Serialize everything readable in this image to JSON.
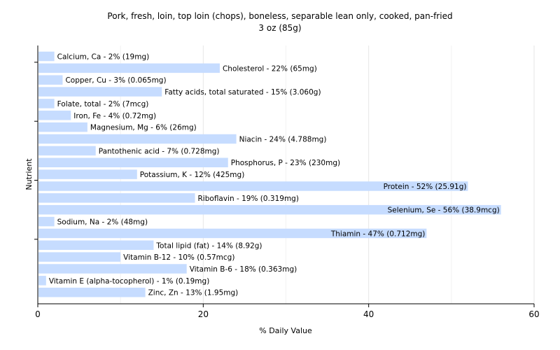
{
  "chart_data": {
    "type": "bar",
    "orientation": "horizontal",
    "title": "Pork, fresh, loin, top loin (chops), boneless, separable lean only, cooked, pan-fried",
    "subtitle": "3 oz (85g)",
    "xlabel": "% Daily Value",
    "ylabel": "Nutrient",
    "xlim": [
      0,
      60
    ],
    "xticks": [
      0,
      20,
      40,
      60
    ],
    "grid": true,
    "bar_color": "#c6dcff",
    "categories": [
      "Calcium, Ca - 2% (19mg)",
      "Cholesterol - 22% (65mg)",
      "Copper, Cu - 3% (0.065mg)",
      "Fatty acids, total saturated - 15% (3.060g)",
      "Folate, total - 2% (7mcg)",
      "Iron, Fe - 4% (0.72mg)",
      "Magnesium, Mg - 6% (26mg)",
      "Niacin - 24% (4.788mg)",
      "Pantothenic acid - 7% (0.728mg)",
      "Phosphorus, P - 23% (230mg)",
      "Potassium, K - 12% (425mg)",
      "Protein - 52% (25.91g)",
      "Riboflavin - 19% (0.319mg)",
      "Selenium, Se - 56% (38.9mcg)",
      "Sodium, Na - 2% (48mg)",
      "Thiamin - 47% (0.712mg)",
      "Total lipid (fat) - 14% (8.92g)",
      "Vitamin B-12 - 10% (0.57mcg)",
      "Vitamin B-6 - 18% (0.363mg)",
      "Vitamin E (alpha-tocopherol) - 1% (0.19mg)",
      "Zinc, Zn - 13% (1.95mg)"
    ],
    "values": [
      2,
      22,
      3,
      15,
      2,
      4,
      6,
      24,
      7,
      23,
      12,
      52,
      19,
      56,
      2,
      47,
      14,
      10,
      18,
      1,
      13
    ]
  }
}
